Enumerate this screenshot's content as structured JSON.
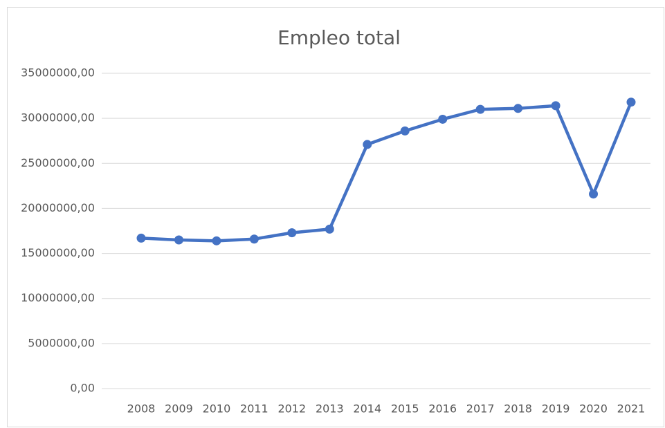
{
  "chart_data": {
    "type": "line",
    "title": "Empleo total",
    "categories": [
      "2008",
      "2009",
      "2010",
      "2011",
      "2012",
      "2013",
      "2014",
      "2015",
      "2016",
      "2017",
      "2018",
      "2019",
      "2020",
      "2021"
    ],
    "series": [
      {
        "name": "Empleo total",
        "color": "#4472c4",
        "values": [
          16700000,
          16500000,
          16400000,
          16600000,
          17300000,
          17700000,
          27100000,
          28600000,
          29900000,
          31000000,
          31100000,
          31400000,
          21600000,
          31800000
        ]
      }
    ],
    "ylim": [
      0,
      35000000
    ],
    "yticks": [
      {
        "value": 0,
        "label": "0,00"
      },
      {
        "value": 5000000,
        "label": "5000000,00"
      },
      {
        "value": 10000000,
        "label": "10000000,00"
      },
      {
        "value": 15000000,
        "label": "15000000,00"
      },
      {
        "value": 20000000,
        "label": "20000000,00"
      },
      {
        "value": 25000000,
        "label": "25000000,00"
      },
      {
        "value": 30000000,
        "label": "30000000,00"
      },
      {
        "value": 35000000,
        "label": "35000000,00"
      }
    ],
    "grid": true
  }
}
